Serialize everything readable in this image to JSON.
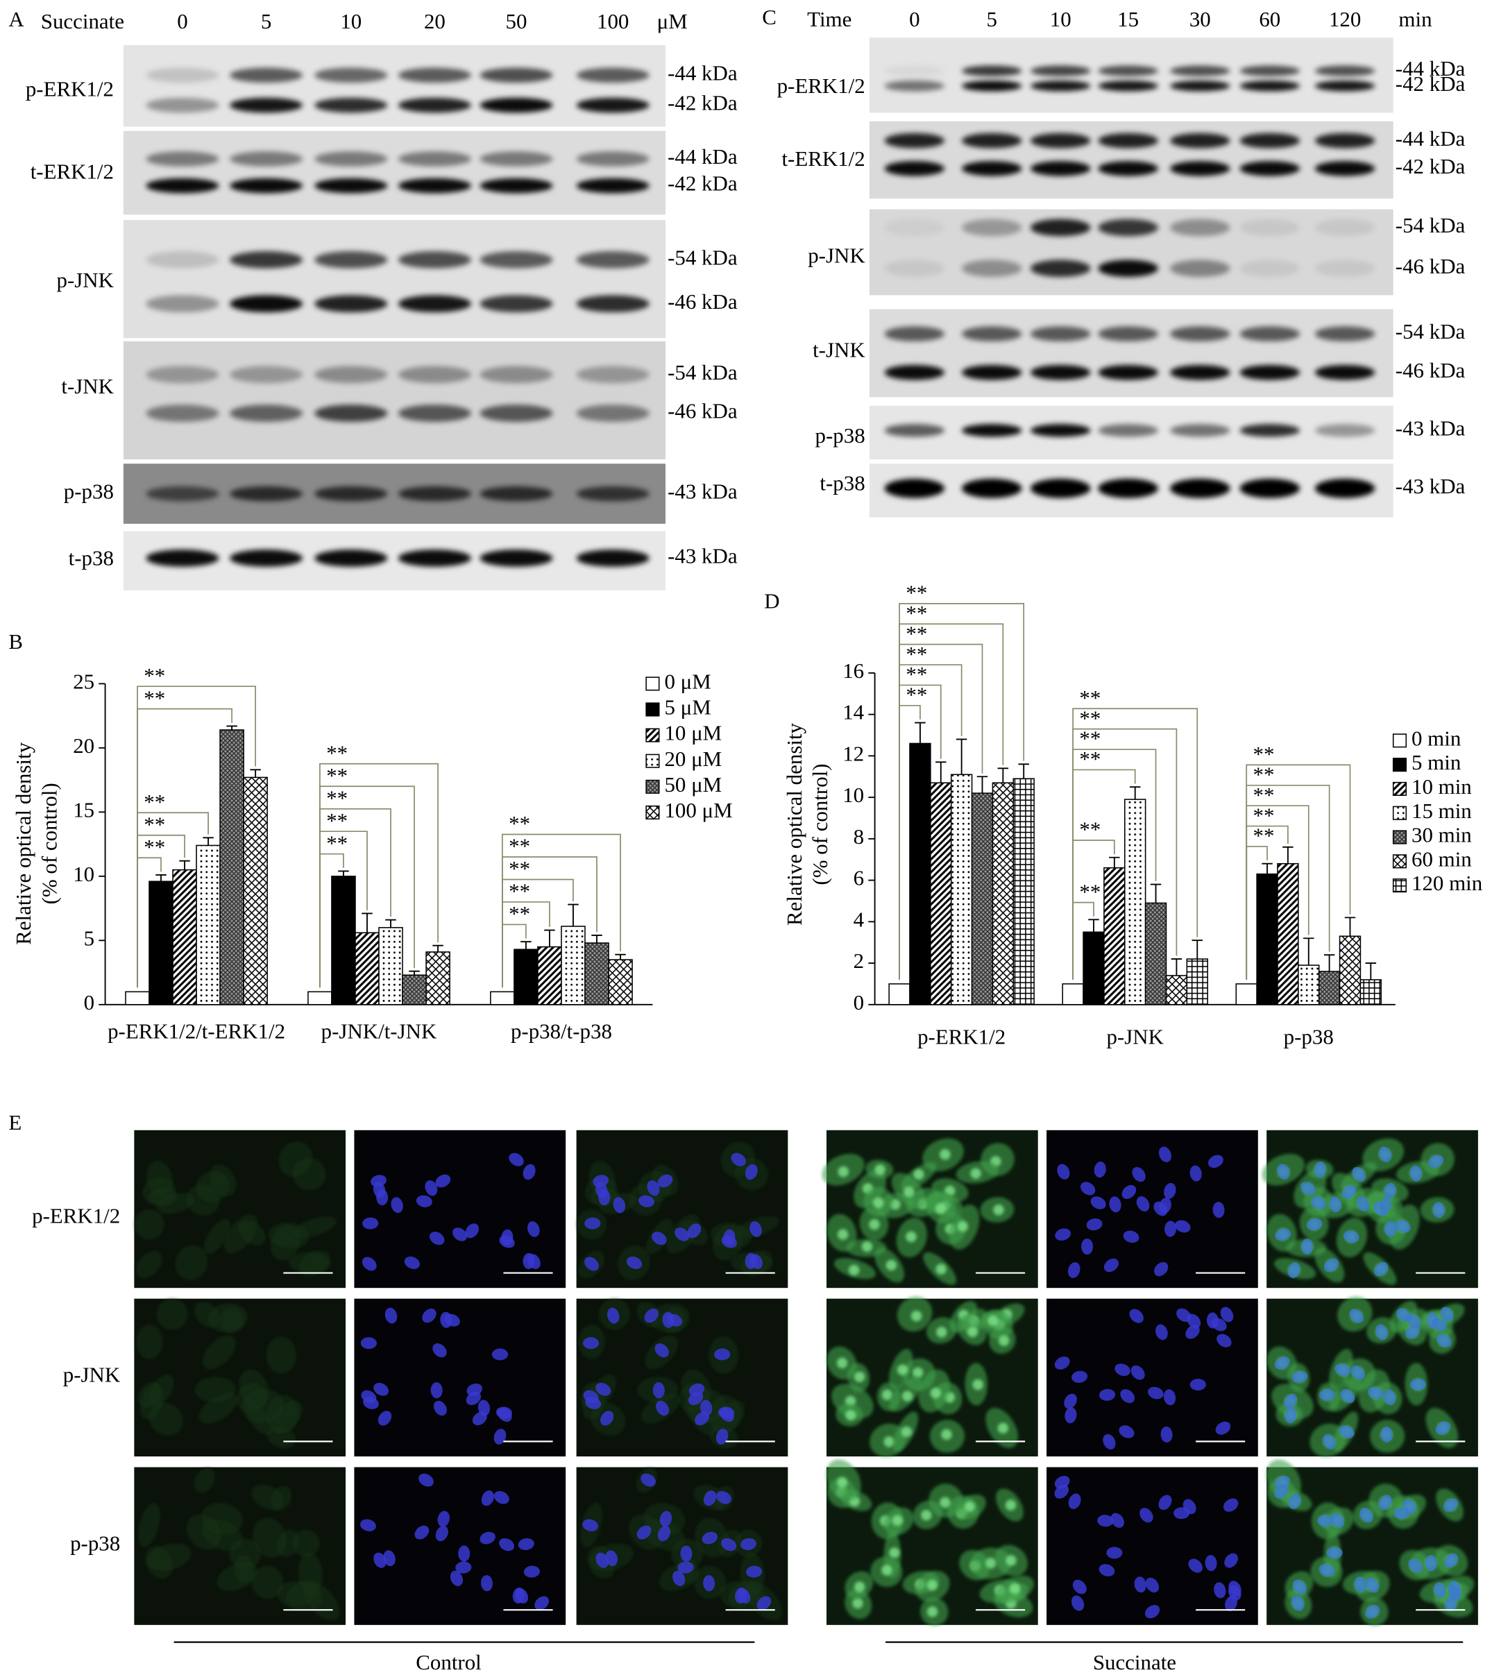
{
  "panel_labels": [
    "A",
    "B",
    "C",
    "D",
    "E"
  ],
  "blot_a": {
    "treatment": "Succinate",
    "lanes": [
      "0",
      "5",
      "10",
      "20",
      "50",
      "100"
    ],
    "unit": "μM",
    "rows": [
      {
        "name": "p-ERK1/2",
        "sizes": [
          "-44 kDa",
          "-42 kDa"
        ]
      },
      {
        "name": "t-ERK1/2",
        "sizes": [
          "-44 kDa",
          "-42 kDa"
        ]
      },
      {
        "name": "p-JNK",
        "sizes": [
          "-54 kDa",
          "-46 kDa"
        ]
      },
      {
        "name": "t-JNK",
        "sizes": [
          "-54 kDa",
          "-46 kDa"
        ]
      },
      {
        "name": "p-p38",
        "sizes": [
          "-43 kDa"
        ]
      },
      {
        "name": "t-p38",
        "sizes": [
          "-43 kDa"
        ]
      }
    ]
  },
  "blot_c": {
    "treatment": "Time",
    "lanes": [
      "0",
      "5",
      "10",
      "15",
      "30",
      "60",
      "120"
    ],
    "unit": "min",
    "rows": [
      {
        "name": "p-ERK1/2",
        "sizes": [
          "-44 kDa",
          "-42 kDa"
        ]
      },
      {
        "name": "t-ERK1/2",
        "sizes": [
          "-44 kDa",
          "-42 kDa"
        ]
      },
      {
        "name": "p-JNK",
        "sizes": [
          "-54 kDa",
          "-46 kDa"
        ]
      },
      {
        "name": "t-JNK",
        "sizes": [
          "-54 kDa",
          "-46 kDa"
        ]
      },
      {
        "name": "p-p38",
        "sizes": [
          "-43 kDa"
        ]
      },
      {
        "name": "t-p38",
        "sizes": [
          "-43 kDa"
        ]
      }
    ]
  },
  "chart_data": [
    {
      "type": "bar",
      "ylabel": [
        "Relative optical density",
        "(% of control)"
      ],
      "categories": [
        "p-ERK1/2/t-ERK1/2",
        "p-JNK/t-JNK",
        "p-p38/t-p38"
      ],
      "ylim": [
        0,
        25
      ],
      "yticks": [
        0,
        5,
        10,
        15,
        20,
        25
      ],
      "series": [
        {
          "name": "0 μM",
          "color": "#ffffff",
          "values": [
            1,
            1,
            1
          ],
          "errors": [
            0,
            0,
            0
          ]
        },
        {
          "name": "5 μM",
          "color": "#000000",
          "values": [
            9.6,
            10.0,
            4.3
          ],
          "errors": [
            0.5,
            0.4,
            0.6
          ],
          "significance": [
            "**",
            "**",
            "**"
          ]
        },
        {
          "name": "10 μM",
          "color": "#000000",
          "values": [
            10.5,
            5.6,
            4.5
          ],
          "errors": [
            0.7,
            1.5,
            1.3
          ],
          "significance": [
            "**",
            "**",
            "**"
          ]
        },
        {
          "name": "20 μM",
          "color": "#000000",
          "values": [
            12.4,
            6.0,
            6.1
          ],
          "errors": [
            0.6,
            0.6,
            1.7
          ],
          "significance": [
            "**",
            "**",
            "**"
          ]
        },
        {
          "name": "50 μM",
          "color": "#333333",
          "values": [
            21.4,
            2.3,
            4.8
          ],
          "errors": [
            0.3,
            0.3,
            0.6
          ],
          "significance": [
            "**",
            "**",
            "**"
          ]
        },
        {
          "name": "100 μM",
          "color": "#000000",
          "values": [
            17.7,
            4.1,
            3.5
          ],
          "errors": [
            0.6,
            0.5,
            0.4
          ],
          "significance": [
            "**",
            "**",
            "**"
          ]
        }
      ]
    },
    {
      "type": "bar",
      "ylabel": [
        "Relative optical density",
        "(% of control)"
      ],
      "categories": [
        "p-ERK1/2",
        "p-JNK",
        "p-p38"
      ],
      "ylim": [
        0,
        16
      ],
      "yticks": [
        0,
        2,
        4,
        6,
        8,
        10,
        12,
        14,
        16
      ],
      "series": [
        {
          "name": "0 min",
          "color": "#ffffff",
          "values": [
            1,
            1,
            1
          ],
          "errors": [
            0,
            0,
            0
          ]
        },
        {
          "name": "5 min",
          "color": "#000000",
          "values": [
            12.6,
            3.5,
            6.3
          ],
          "errors": [
            1.0,
            0.6,
            0.5
          ],
          "significance": [
            "**",
            "**",
            "**"
          ]
        },
        {
          "name": "10 min",
          "color": "#000000",
          "values": [
            10.7,
            6.6,
            6.8
          ],
          "errors": [
            1.0,
            0.5,
            0.8
          ],
          "significance": [
            "**",
            "**",
            "**"
          ]
        },
        {
          "name": "15 min",
          "color": "#000000",
          "values": [
            11.1,
            9.9,
            1.9
          ],
          "errors": [
            1.7,
            0.6,
            1.3
          ],
          "significance": [
            "**",
            "**",
            "**"
          ]
        },
        {
          "name": "30 min",
          "color": "#333333",
          "values": [
            10.2,
            4.9,
            1.6
          ],
          "errors": [
            0.8,
            0.9,
            0.8
          ],
          "significance": [
            "**",
            "**",
            "**"
          ]
        },
        {
          "name": "60 min",
          "color": "#000000",
          "values": [
            10.7,
            1.4,
            3.3
          ],
          "errors": [
            0.7,
            0.8,
            0.9
          ],
          "significance": [
            "**",
            "**",
            "**"
          ]
        },
        {
          "name": "120 min",
          "color": "#000000",
          "values": [
            10.9,
            2.2,
            1.2
          ],
          "errors": [
            0.7,
            0.9,
            0.8
          ],
          "significance": [
            "**",
            "**",
            null
          ]
        }
      ]
    }
  ],
  "images": {
    "rows": [
      "p-ERK1/2",
      "p-JNK",
      "p-p38"
    ],
    "groups": [
      "Control",
      "Succinate"
    ]
  }
}
